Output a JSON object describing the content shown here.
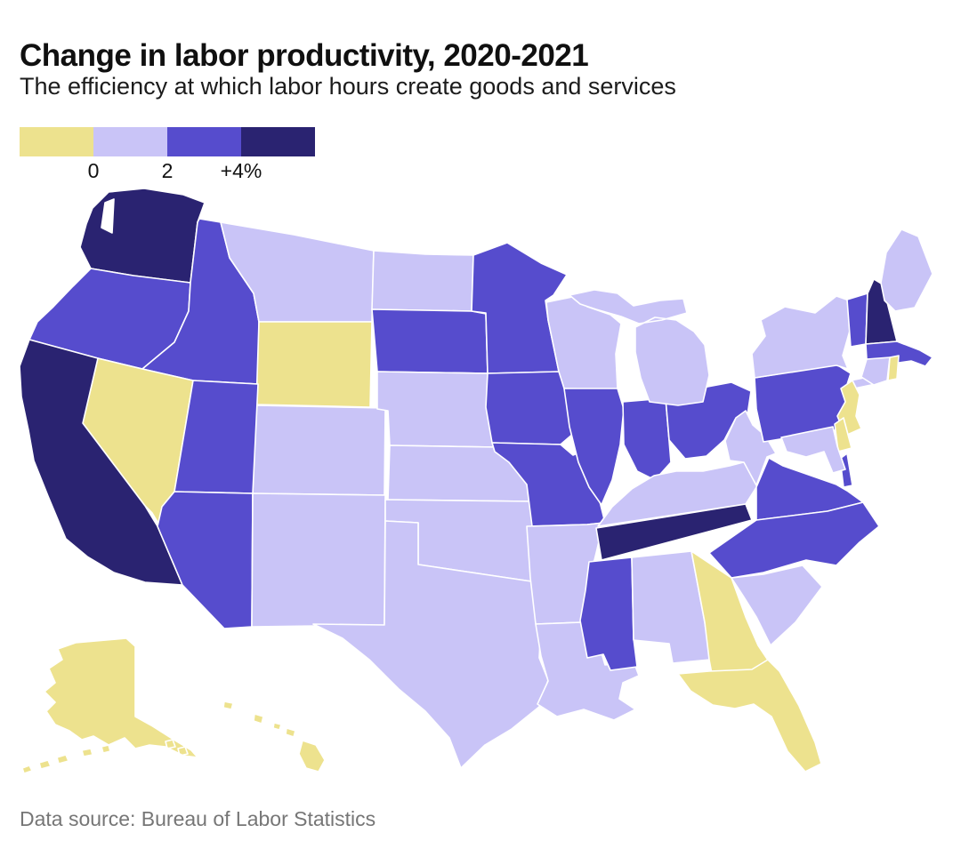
{
  "header": {
    "title": "Change in labor productivity, 2020-2021",
    "subtitle": "The efficiency at which labor hours create goods and services"
  },
  "legend": {
    "ticks": [
      "0",
      "2",
      "+4%"
    ]
  },
  "footer": {
    "source": "Data source: Bureau of Labor Statistics"
  },
  "chart_data": {
    "type": "choropleth",
    "title": "Change in labor productivity, 2020-2021",
    "unit": "percent change in labor productivity, 2020-2021",
    "legend_bins": [
      {
        "id": "below-0",
        "range": "below 0",
        "color": "#ede28e"
      },
      {
        "id": "0-2",
        "range": "0 to 2",
        "color": "#c9c4f7"
      },
      {
        "id": "2-4",
        "range": "2 to 4",
        "color": "#564ccd"
      },
      {
        "id": "4-plus",
        "range": "+4% and above",
        "color": "#2a2371"
      }
    ],
    "states": {
      "WA": "4-plus",
      "OR": "2-4",
      "CA": "4-plus",
      "NV": "below-0",
      "ID": "2-4",
      "MT": "0-2",
      "WY": "below-0",
      "UT": "2-4",
      "CO": "0-2",
      "AZ": "2-4",
      "NM": "0-2",
      "ND": "0-2",
      "SD": "2-4",
      "NE": "0-2",
      "KS": "0-2",
      "OK": "0-2",
      "TX": "0-2",
      "MN": "2-4",
      "IA": "2-4",
      "MO": "2-4",
      "AR": "0-2",
      "LA": "0-2",
      "WI": "0-2",
      "IL": "2-4",
      "MI": "0-2",
      "IN": "2-4",
      "OH": "2-4",
      "KY": "0-2",
      "TN": "4-plus",
      "MS": "2-4",
      "AL": "0-2",
      "GA": "below-0",
      "FL": "below-0",
      "SC": "0-2",
      "NC": "2-4",
      "VA": "2-4",
      "WV": "0-2",
      "MD": "0-2",
      "DE": "below-0",
      "NJ": "below-0",
      "PA": "2-4",
      "NY": "0-2",
      "CT": "0-2",
      "RI": "below-0",
      "MA": "2-4",
      "VT": "2-4",
      "NH": "4-plus",
      "ME": "0-2",
      "AK": "below-0",
      "HI": "below-0"
    }
  }
}
